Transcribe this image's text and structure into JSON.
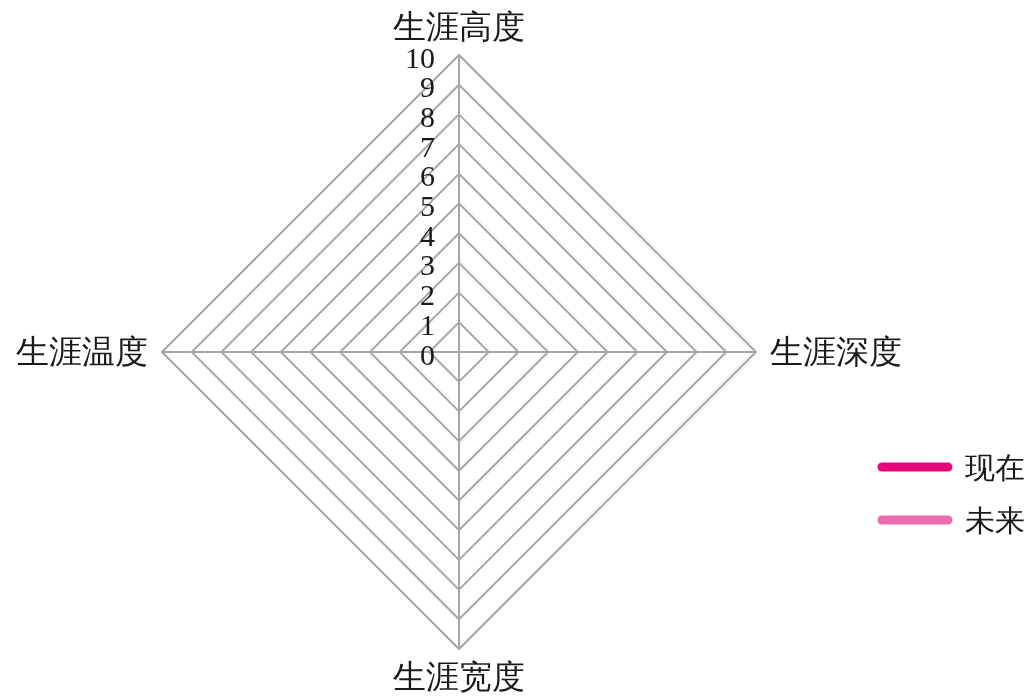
{
  "chart_data": {
    "type": "radar",
    "categories": [
      "生涯高度",
      "生涯深度",
      "生涯宽度",
      "生涯温度"
    ],
    "ylim": [
      0,
      10
    ],
    "yticks": [
      0,
      1,
      2,
      3,
      4,
      5,
      6,
      7,
      8,
      9,
      10
    ],
    "grid": true,
    "legend": "right",
    "series": [
      {
        "name": "现在",
        "color": "#e5087c",
        "values": [
          null,
          null,
          null,
          null
        ]
      },
      {
        "name": "未来",
        "color": "#ef6bb0",
        "values": [
          null,
          null,
          null,
          null
        ]
      }
    ]
  }
}
